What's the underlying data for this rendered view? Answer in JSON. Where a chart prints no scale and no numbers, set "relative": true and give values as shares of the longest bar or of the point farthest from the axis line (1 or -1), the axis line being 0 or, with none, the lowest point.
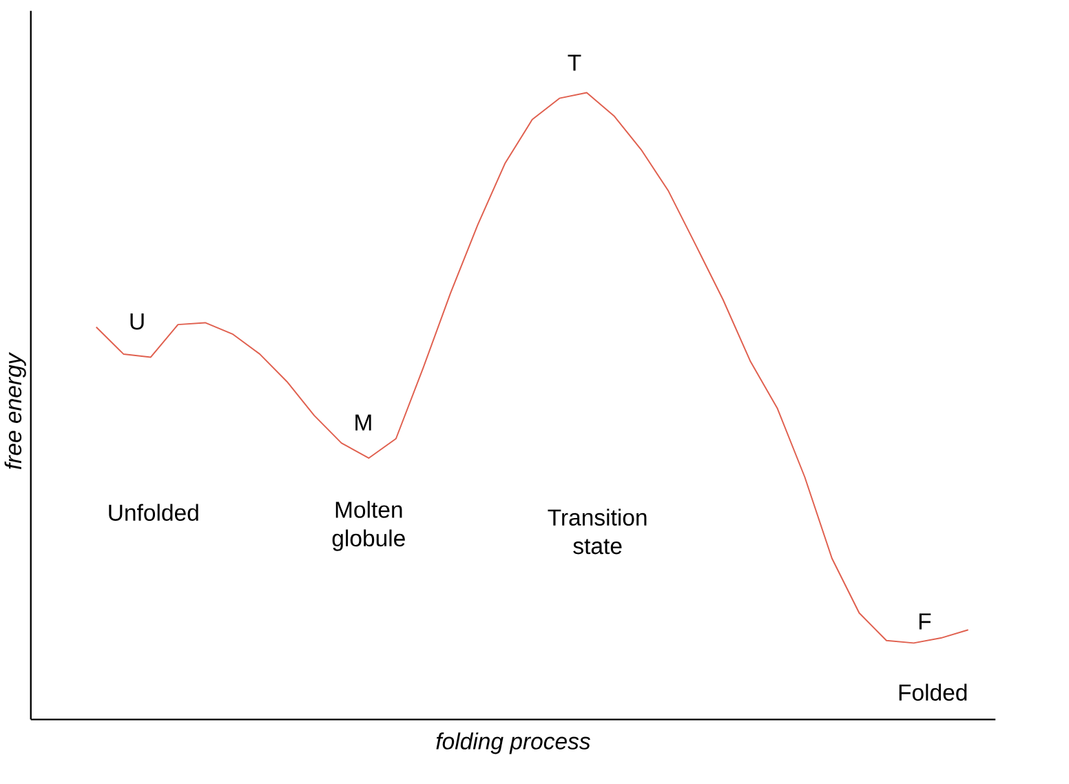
{
  "chart_data": {
    "type": "line",
    "relative": true,
    "xlabel": "folding process",
    "ylabel": "free energy",
    "categories": [
      null,
      null,
      null,
      null,
      null,
      null,
      null,
      null,
      null,
      null,
      null,
      null,
      null,
      null,
      null,
      null,
      null,
      null,
      null,
      null,
      null,
      null,
      null,
      null,
      null,
      null,
      null,
      null,
      null,
      null,
      null,
      null,
      null
    ],
    "series": [
      {
        "color": "#e0604f",
        "values": [
          0.626,
          0.583,
          0.578,
          0.63,
          0.633,
          0.615,
          0.583,
          0.539,
          0.485,
          0.441,
          0.417,
          0.448,
          0.561,
          0.68,
          0.789,
          0.887,
          0.957,
          0.991,
          1,
          0.963,
          0.909,
          0.843,
          0.757,
          0.67,
          0.572,
          0.496,
          0.387,
          0.257,
          0.17,
          0.126,
          0.122,
          0.13,
          0.143
        ]
      }
    ],
    "annotations": [
      "U",
      "M",
      "T",
      "F",
      "Unfolded",
      "Molten globule",
      "Transition state",
      "Folded"
    ]
  }
}
